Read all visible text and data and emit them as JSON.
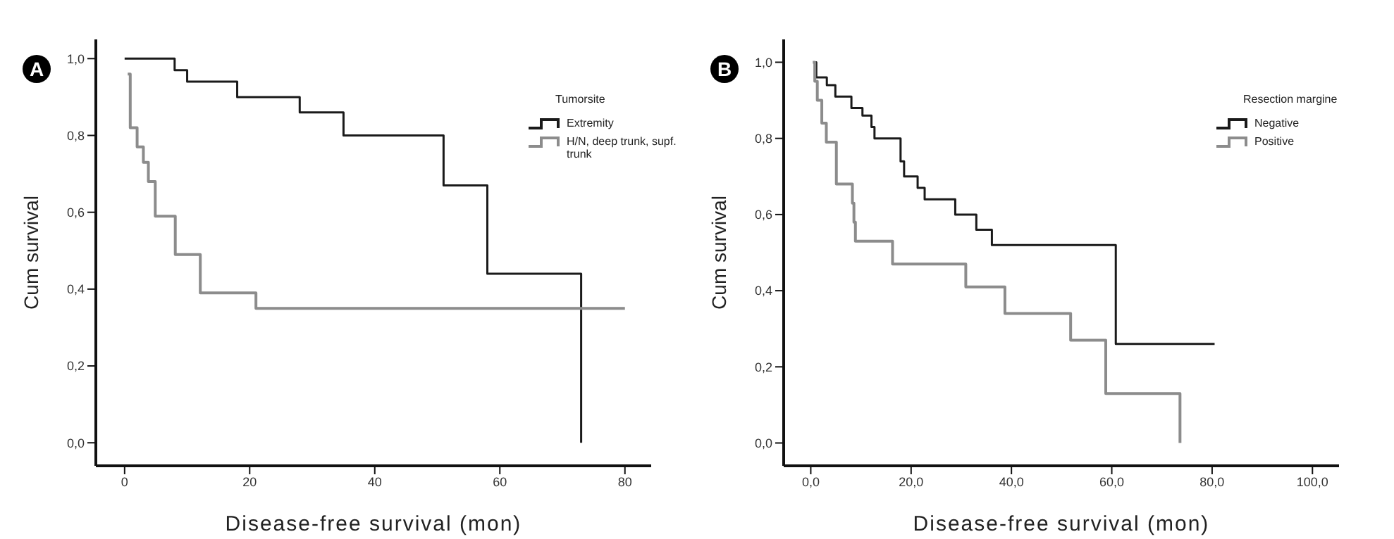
{
  "chart_data": [
    {
      "type": "step",
      "xlabel": "Disease-free survival (mon)",
      "ylabel": "Cum survival",
      "legend_title": "Tumorsite",
      "legend": "top right",
      "annotations": [
        "A"
      ],
      "xlim": [
        -4.6,
        84.2
      ],
      "xticks": [
        0,
        20,
        40,
        60,
        80
      ],
      "ylim": [
        -0.06,
        1.05
      ],
      "yticks": [
        {
          "value": 0,
          "label": "0,0"
        },
        {
          "value": 0.2,
          "label": "0,2"
        },
        {
          "value": 0.4,
          "label": "0,4"
        },
        {
          "value": 0.6,
          "label": "0,6"
        },
        {
          "value": 0.8,
          "label": "0,8"
        },
        {
          "value": 1,
          "label": "1,0"
        }
      ],
      "series": [
        {
          "name": "Extremity",
          "color": "#1a1a1a",
          "x": [
            0,
            8,
            10,
            18,
            28,
            35,
            51,
            58,
            73
          ],
          "values": [
            1.0,
            0.97,
            0.94,
            0.9,
            0.86,
            0.8,
            0.67,
            0.44,
            0.0
          ]
        },
        {
          "name": "H/N, deep trunk, supf. trunk",
          "color": "#8c8c8c",
          "x": [
            0.5,
            0.9,
            2.0,
            3.0,
            3.8,
            4.9,
            8.1,
            12.1,
            21.0,
            80
          ],
          "values": [
            0.96,
            0.82,
            0.77,
            0.73,
            0.68,
            0.59,
            0.49,
            0.39,
            0.35,
            0.35
          ]
        }
      ]
    },
    {
      "type": "step",
      "xlabel": "Disease-free survival (mon)",
      "ylabel": "Cum survival",
      "legend_title": "Resection margine",
      "legend": "top right",
      "annotations": [
        "B"
      ],
      "xlim": [
        -5.4,
        105.3
      ],
      "xticks": [
        {
          "value": 0,
          "label": "0,0"
        },
        {
          "value": 20,
          "label": "20,0"
        },
        {
          "value": 40,
          "label": "40,0"
        },
        {
          "value": 60,
          "label": "60,0"
        },
        {
          "value": 80,
          "label": "80,0"
        },
        {
          "value": 100,
          "label": "100,0"
        }
      ],
      "ylim": [
        -0.06,
        1.06
      ],
      "yticks": [
        {
          "value": 0,
          "label": "0,0"
        },
        {
          "value": 0.2,
          "label": "0,2"
        },
        {
          "value": 0.4,
          "label": "0,4"
        },
        {
          "value": 0.6,
          "label": "0,6"
        },
        {
          "value": 0.8,
          "label": "0,8"
        },
        {
          "value": 1,
          "label": "1,0"
        }
      ],
      "series": [
        {
          "name": "Negative",
          "color": "#1a1a1a",
          "x": [
            0.9,
            1.1,
            3.2,
            4.9,
            8.1,
            10.3,
            12.1,
            12.7,
            17.9,
            18.6,
            21.3,
            22.7,
            28.8,
            33.0,
            36.1,
            60.8,
            80.5
          ],
          "values": [
            1.0,
            0.96,
            0.94,
            0.91,
            0.88,
            0.86,
            0.83,
            0.8,
            0.74,
            0.7,
            0.67,
            0.64,
            0.6,
            0.56,
            0.52,
            0.26,
            0.26
          ]
        },
        {
          "name": "Positive",
          "color": "#8c8c8c",
          "x": [
            0.4,
            0.8,
            1.3,
            2.2,
            3.1,
            5.1,
            8.3,
            8.6,
            8.9,
            16.3,
            30.9,
            38.7,
            51.8,
            58.8,
            73.6
          ],
          "values": [
            1.0,
            0.95,
            0.9,
            0.84,
            0.79,
            0.68,
            0.63,
            0.58,
            0.53,
            0.47,
            0.41,
            0.34,
            0.27,
            0.13,
            0.0
          ]
        }
      ]
    }
  ]
}
